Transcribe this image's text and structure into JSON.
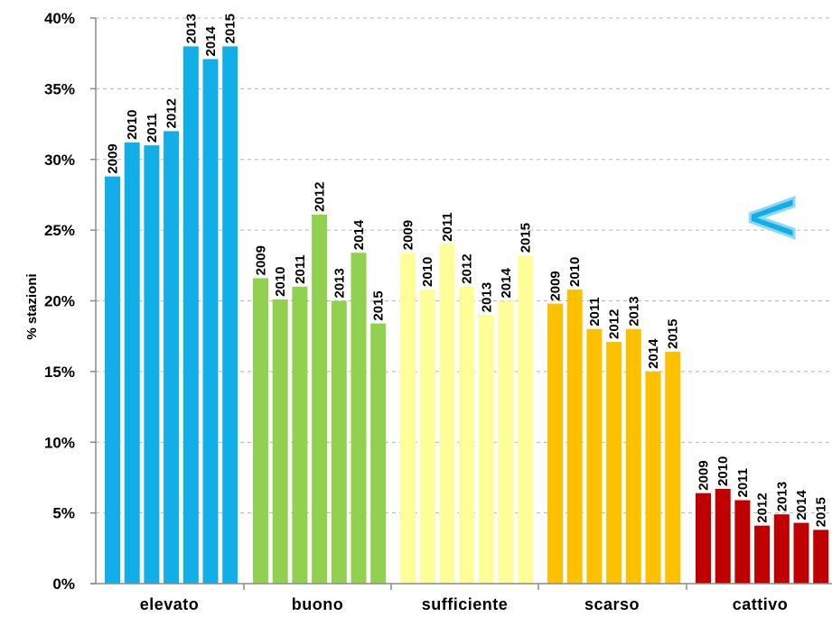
{
  "chart_data": {
    "type": "bar",
    "ylabel": "% stazioni",
    "xlabel": "",
    "ylim": [
      0,
      40
    ],
    "yticks": [
      "0%",
      "5%",
      "10%",
      "15%",
      "20%",
      "25%",
      "30%",
      "35%",
      "40%"
    ],
    "grid": true,
    "categories": [
      "elevato",
      "buono",
      "sufficiente",
      "scarso",
      "cattivo"
    ],
    "series_labels": [
      "2009",
      "2010",
      "2011",
      "2012",
      "2013",
      "2014",
      "2015"
    ],
    "category_colors": [
      "#12aee8",
      "#92d050",
      "#ffff99",
      "#ffc000",
      "#c00000"
    ],
    "values": [
      [
        28.8,
        31.2,
        31.0,
        32.0,
        38.0,
        37.1,
        38.0
      ],
      [
        21.6,
        20.1,
        21.0,
        26.1,
        20.0,
        23.4,
        18.4
      ],
      [
        23.4,
        20.8,
        24.0,
        21.0,
        19.0,
        20.0,
        23.2
      ],
      [
        19.8,
        20.8,
        18.0,
        17.1,
        18.0,
        15.0,
        16.4
      ],
      [
        6.4,
        6.7,
        5.9,
        4.1,
        4.9,
        4.3,
        3.8
      ]
    ]
  },
  "decoration": {
    "arrow_glyph": "<",
    "arrow_color": "#12aee8"
  }
}
